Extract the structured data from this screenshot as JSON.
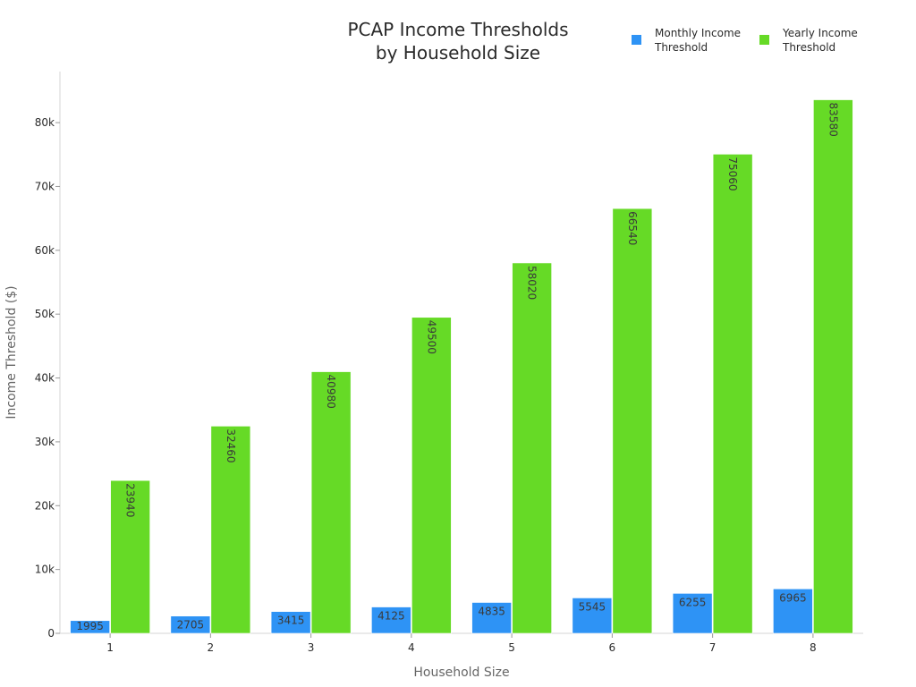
{
  "chart_data": {
    "type": "bar",
    "title": [
      "PCAP Income Thresholds",
      "by Household Size"
    ],
    "xlabel": "Household Size",
    "ylabel": "Income Threshold ($)",
    "categories": [
      "1",
      "2",
      "3",
      "4",
      "5",
      "6",
      "7",
      "8"
    ],
    "series": [
      {
        "name": "Monthly Income Threshold",
        "legend_lines": [
          "Monthly Income",
          "Threshold"
        ],
        "color": "#2e93f5",
        "values": [
          1995,
          2705,
          3415,
          4125,
          4835,
          5545,
          6255,
          6965
        ]
      },
      {
        "name": "Yearly Income Threshold",
        "legend_lines": [
          "Yearly Income",
          "Threshold"
        ],
        "color": "#66da26",
        "values": [
          23940,
          32460,
          40980,
          49500,
          58020,
          66540,
          75060,
          83580
        ]
      }
    ],
    "ylim": [
      0,
      88000
    ],
    "yticks": [
      0,
      10000,
      20000,
      30000,
      40000,
      50000,
      60000,
      70000,
      80000
    ],
    "ytick_labels": [
      "0",
      "10k",
      "20k",
      "30k",
      "40k",
      "50k",
      "60k",
      "70k",
      "80k"
    ],
    "grid": false,
    "legend_position": "top-right"
  }
}
